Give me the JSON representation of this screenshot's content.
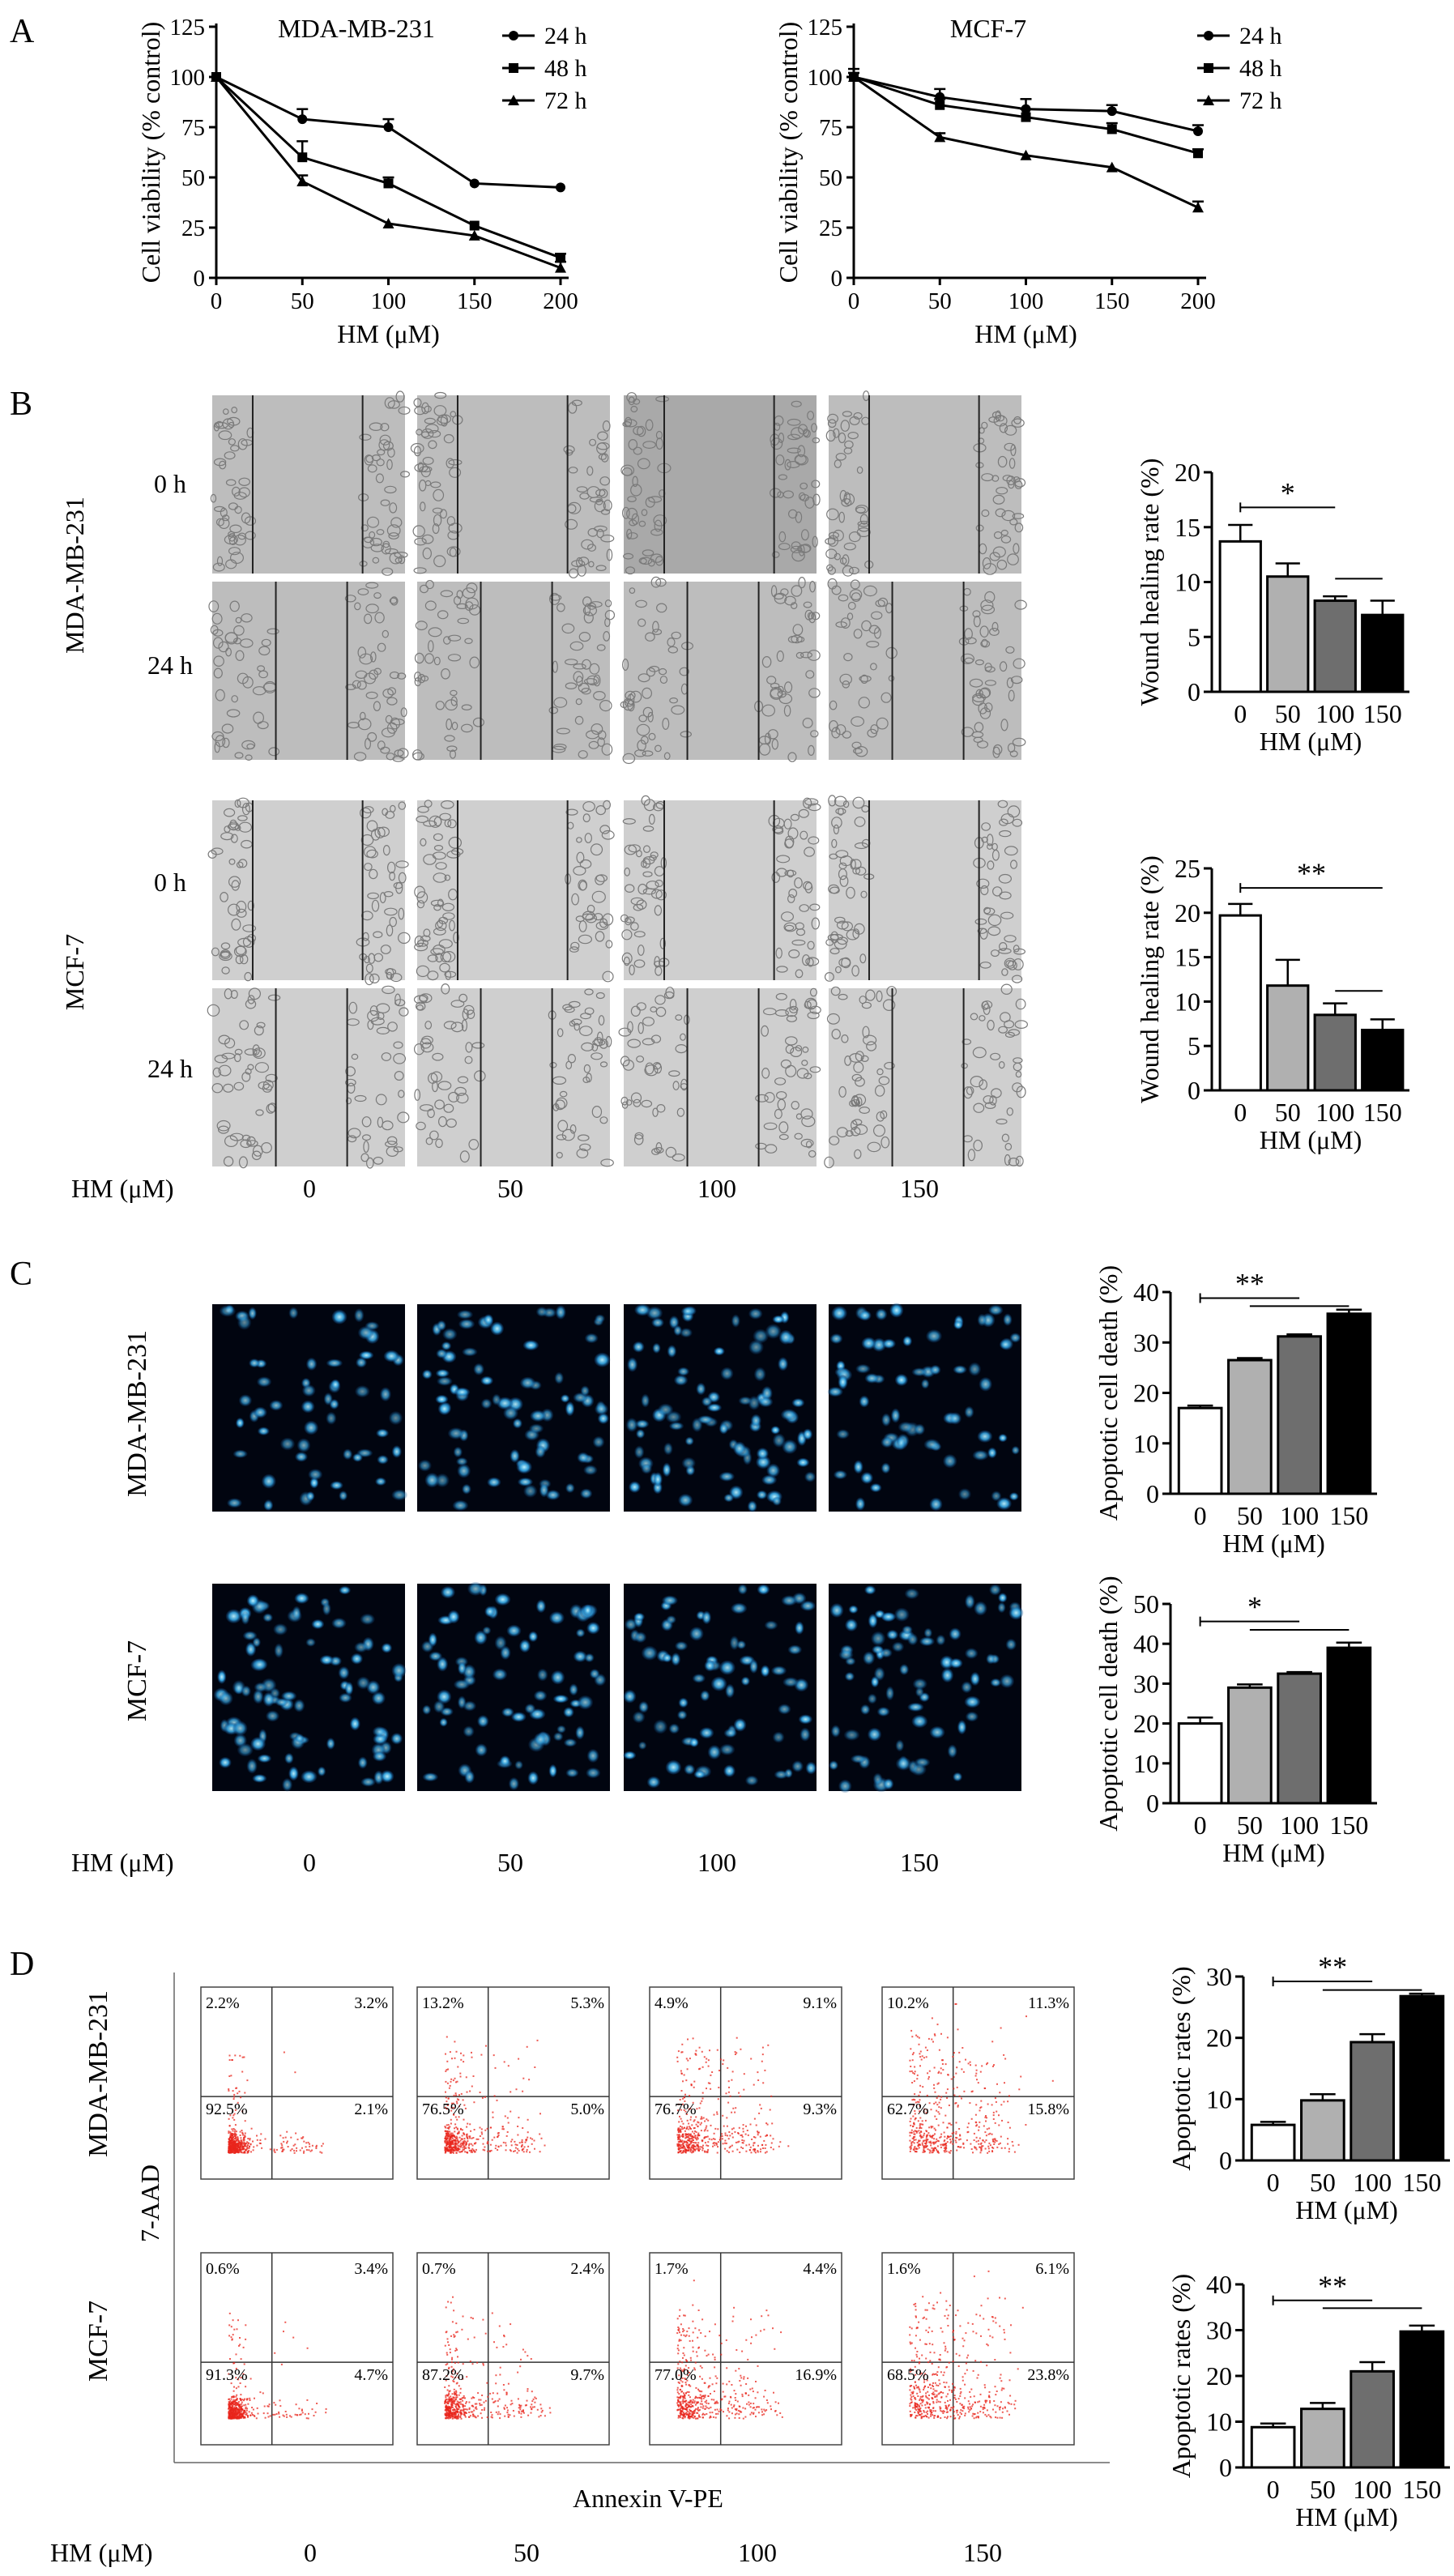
{
  "panels": {
    "A": {
      "letter": "A"
    },
    "B": {
      "letter": "B",
      "rows": [
        {
          "cell_line": "MDA-MB-231",
          "times": [
            "0 h",
            "24 h"
          ]
        },
        {
          "cell_line": "MCF-7",
          "times": [
            "0 h",
            "24 h"
          ]
        }
      ],
      "hm_label": "HM (μM)",
      "doses": [
        "0",
        "50",
        "100",
        "150"
      ]
    },
    "C": {
      "letter": "C",
      "rows": [
        "MDA-MB-231",
        "MCF-7"
      ],
      "hm_label": "HM (μM)",
      "doses": [
        "0",
        "50",
        "100",
        "150"
      ]
    },
    "D": {
      "letter": "D",
      "rows": [
        "MDA-MB-231",
        "MCF-7"
      ],
      "y_axis": "7-AAD",
      "x_axis": "Annexin V-PE",
      "hm_label": "HM (μM)",
      "doses": [
        "0",
        "50",
        "100",
        "150"
      ],
      "quadrants": [
        [
          {
            "ul": "2.2%",
            "ur": "3.2%",
            "ll": "92.5%",
            "lr": "2.1%"
          },
          {
            "ul": "13.2%",
            "ur": "5.3%",
            "ll": "76.5%",
            "lr": "5.0%"
          },
          {
            "ul": "4.9%",
            "ur": "9.1%",
            "ll": "76.7%",
            "lr": "9.3%"
          },
          {
            "ul": "10.2%",
            "ur": "11.3%",
            "ll": "62.7%",
            "lr": "15.8%"
          }
        ],
        [
          {
            "ul": "0.6%",
            "ur": "3.4%",
            "ll": "91.3%",
            "lr": "4.7%"
          },
          {
            "ul": "0.7%",
            "ur": "2.4%",
            "ll": "87.2%",
            "lr": "9.7%"
          },
          {
            "ul": "1.7%",
            "ur": "4.4%",
            "ll": "77.0%",
            "lr": "16.9%"
          },
          {
            "ul": "1.6%",
            "ur": "6.1%",
            "ll": "68.5%",
            "lr": "23.8%"
          }
        ]
      ]
    }
  },
  "chart_data": [
    {
      "id": "A1",
      "type": "line",
      "title": "MDA-MB-231",
      "xlabel": "HM (μM)",
      "ylabel": "Cell viability (% control)",
      "x": [
        0,
        50,
        100,
        150,
        200
      ],
      "xlim": [
        0,
        200
      ],
      "ylim": [
        0,
        125
      ],
      "yticks": [
        0,
        25,
        50,
        75,
        100,
        125
      ],
      "legend": "top-right",
      "series": [
        {
          "name": "24 h",
          "marker": "circle",
          "values": [
            100,
            79,
            75,
            47,
            45
          ],
          "errors": [
            0,
            5,
            4,
            0,
            0
          ]
        },
        {
          "name": "48 h",
          "marker": "square",
          "values": [
            100,
            60,
            47,
            26,
            10
          ],
          "errors": [
            0,
            8,
            3,
            0,
            2
          ]
        },
        {
          "name": "72 h",
          "marker": "triangle",
          "values": [
            100,
            48,
            27,
            21,
            5
          ],
          "errors": [
            0,
            3,
            0,
            0,
            3
          ]
        }
      ]
    },
    {
      "id": "A2",
      "type": "line",
      "title": "MCF-7",
      "xlabel": "HM (μM)",
      "ylabel": "Cell viability (% control)",
      "x": [
        0,
        50,
        100,
        150,
        200
      ],
      "xlim": [
        0,
        200
      ],
      "ylim": [
        0,
        125
      ],
      "yticks": [
        0,
        25,
        50,
        75,
        100,
        125
      ],
      "legend": "top-right",
      "series": [
        {
          "name": "24 h",
          "marker": "circle",
          "values": [
            100,
            90,
            84,
            83,
            73
          ],
          "errors": [
            4,
            4,
            5,
            3,
            3
          ]
        },
        {
          "name": "48 h",
          "marker": "square",
          "values": [
            100,
            86,
            80,
            74,
            62
          ],
          "errors": [
            2,
            3,
            4,
            3,
            2
          ]
        },
        {
          "name": "72 h",
          "marker": "triangle",
          "values": [
            100,
            70,
            61,
            55,
            35
          ],
          "errors": [
            2,
            2,
            0,
            0,
            3
          ]
        }
      ]
    },
    {
      "id": "B1",
      "type": "bar",
      "ylabel": "Wound healing rate (%)",
      "xlabel": "HM (μM)",
      "categories": [
        "0",
        "50",
        "100",
        "150"
      ],
      "values": [
        13.7,
        10.5,
        8.3,
        7.0
      ],
      "errors": [
        1.5,
        1.2,
        0.4,
        1.3
      ],
      "ylim": [
        0,
        20
      ],
      "yticks": [
        0,
        5,
        10,
        15,
        20
      ],
      "fills": [
        "#ffffff",
        "#b0b0b0",
        "#6e6e6e",
        "#000000"
      ],
      "significance": [
        {
          "label": "*",
          "from": 0,
          "to": 2,
          "level": 16.8,
          "label_at": 0.5
        },
        {
          "label": "",
          "from": 2,
          "to": 3,
          "level": 10.3
        }
      ]
    },
    {
      "id": "B2",
      "type": "bar",
      "ylabel": "Wound healing rate (%)",
      "xlabel": "HM (μM)",
      "categories": [
        "0",
        "50",
        "100",
        "150"
      ],
      "values": [
        19.7,
        11.8,
        8.5,
        6.8
      ],
      "errors": [
        1.3,
        2.9,
        1.3,
        1.2
      ],
      "ylim": [
        0,
        25
      ],
      "yticks": [
        0,
        5,
        10,
        15,
        20,
        25
      ],
      "fills": [
        "#ffffff",
        "#b0b0b0",
        "#6e6e6e",
        "#000000"
      ],
      "significance": [
        {
          "label": "**",
          "from": 0,
          "to": 3,
          "level": 22.8,
          "label_at": 0.5
        },
        {
          "label": "",
          "from": 2,
          "to": 3,
          "level": 11.2
        }
      ]
    },
    {
      "id": "C1",
      "type": "bar",
      "ylabel": "Apoptotic cell death (%)",
      "xlabel": "HM (μM)",
      "categories": [
        "0",
        "50",
        "100",
        "150"
      ],
      "values": [
        17,
        26.5,
        31.2,
        35.7
      ],
      "errors": [
        0.5,
        0.4,
        0.4,
        0.8
      ],
      "ylim": [
        0,
        40
      ],
      "yticks": [
        0,
        10,
        20,
        30,
        40
      ],
      "fills": [
        "#ffffff",
        "#b0b0b0",
        "#6e6e6e",
        "#000000"
      ],
      "significance": [
        {
          "label": "**",
          "from": 0,
          "to": 2,
          "level": 38.8,
          "label_at": 0.5
        },
        {
          "label": "",
          "from": 1,
          "to": 3,
          "level": 37.2
        }
      ]
    },
    {
      "id": "C2",
      "type": "bar",
      "ylabel": "Apoptotic cell death (%)",
      "xlabel": "HM (μM)",
      "categories": [
        "0",
        "50",
        "100",
        "150"
      ],
      "values": [
        20,
        29,
        32.5,
        39
      ],
      "errors": [
        1.5,
        0.8,
        0.4,
        1.3
      ],
      "ylim": [
        0,
        50
      ],
      "yticks": [
        0,
        10,
        20,
        30,
        40,
        50
      ],
      "fills": [
        "#ffffff",
        "#b0b0b0",
        "#6e6e6e",
        "#000000"
      ],
      "significance": [
        {
          "label": "*",
          "from": 0,
          "to": 2,
          "level": 45.6,
          "label_at": 0.55
        },
        {
          "label": "",
          "from": 1,
          "to": 3,
          "level": 43.5
        }
      ]
    },
    {
      "id": "D1",
      "type": "bar",
      "ylabel": "Apoptotic rates (%)",
      "xlabel": "HM (μM)",
      "categories": [
        "0",
        "50",
        "100",
        "150"
      ],
      "values": [
        5.8,
        9.8,
        19.3,
        26.8
      ],
      "errors": [
        0.5,
        1.0,
        1.3,
        0.4
      ],
      "ylim": [
        0,
        30
      ],
      "yticks": [
        0,
        10,
        20,
        30
      ],
      "fills": [
        "#ffffff",
        "#b0b0b0",
        "#6e6e6e",
        "#000000"
      ],
      "significance": [
        {
          "label": "**",
          "from": 0,
          "to": 2,
          "level": 29.2,
          "label_at": 0.6
        },
        {
          "label": "",
          "from": 1,
          "to": 3,
          "level": 27.8
        }
      ]
    },
    {
      "id": "D2",
      "type": "bar",
      "ylabel": "Apoptotic rates (%)",
      "xlabel": "HM (μM)",
      "categories": [
        "0",
        "50",
        "100",
        "150"
      ],
      "values": [
        8.8,
        12.8,
        21,
        29.7
      ],
      "errors": [
        0.8,
        1.3,
        2.0,
        1.3
      ],
      "ylim": [
        0,
        40
      ],
      "yticks": [
        0,
        10,
        20,
        30,
        40
      ],
      "fills": [
        "#ffffff",
        "#b0b0b0",
        "#6e6e6e",
        "#000000"
      ],
      "significance": [
        {
          "label": "**",
          "from": 0,
          "to": 2,
          "level": 36.5,
          "label_at": 0.6
        },
        {
          "label": "",
          "from": 1,
          "to": 3,
          "level": 34.8
        }
      ]
    }
  ]
}
